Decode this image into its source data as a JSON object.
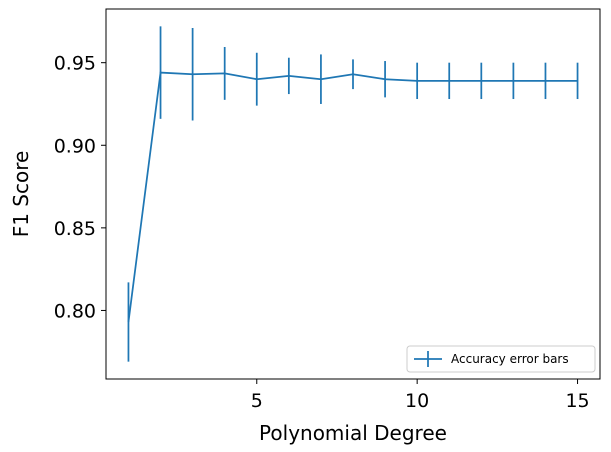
{
  "chart_data": {
    "type": "line",
    "title": "",
    "xlabel": "Polynomial Degree",
    "ylabel": "F1 Score",
    "xlim": [
      0.3,
      15.7
    ],
    "ylim": [
      0.7585,
      0.9825
    ],
    "xticks": [
      5,
      10,
      15
    ],
    "yticks": [
      0.8,
      0.85,
      0.9,
      0.95
    ],
    "xtick_labels": [
      "5",
      "10",
      "15"
    ],
    "ytick_labels": [
      "0.80",
      "0.85",
      "0.90",
      "0.95"
    ],
    "grid": false,
    "legend_position": "lower-right",
    "series": [
      {
        "name": "Accuracy error bars",
        "color": "#1f77b4",
        "x": [
          1,
          2,
          3,
          4,
          5,
          6,
          7,
          8,
          9,
          10,
          11,
          12,
          13,
          14,
          15
        ],
        "y": [
          0.793,
          0.944,
          0.943,
          0.9435,
          0.94,
          0.942,
          0.94,
          0.943,
          0.94,
          0.939,
          0.939,
          0.939,
          0.939,
          0.939,
          0.939
        ],
        "yerr": [
          0.024,
          0.028,
          0.028,
          0.016,
          0.016,
          0.011,
          0.015,
          0.009,
          0.011,
          0.011,
          0.011,
          0.011,
          0.011,
          0.011,
          0.011
        ]
      }
    ]
  }
}
